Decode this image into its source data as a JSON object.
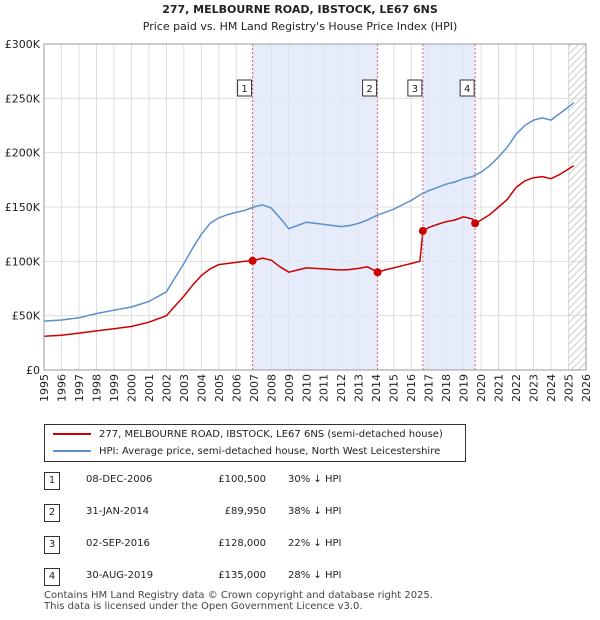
{
  "chart_data": {
    "type": "line",
    "title": "277, MELBOURNE ROAD, IBSTOCK, LE67 6NS",
    "subtitle": "Price paid vs. HM Land Registry's House Price Index (HPI)",
    "xlim": [
      1995,
      2026
    ],
    "ylim": [
      0,
      300000
    ],
    "yticks": [
      0,
      50000,
      100000,
      150000,
      200000,
      250000,
      300000
    ],
    "ytick_labels": [
      "£0",
      "£50K",
      "£100K",
      "£150K",
      "£200K",
      "£250K",
      "£300K"
    ],
    "xticks": [
      1995,
      1996,
      1997,
      1998,
      1999,
      2000,
      2001,
      2002,
      2003,
      2004,
      2005,
      2006,
      2007,
      2008,
      2009,
      2010,
      2011,
      2012,
      2013,
      2014,
      2015,
      2016,
      2017,
      2018,
      2019,
      2020,
      2021,
      2022,
      2023,
      2024,
      2025,
      2026
    ],
    "shaded_ranges": [
      [
        2006.93,
        2014.08
      ],
      [
        2016.67,
        2019.66
      ]
    ],
    "forecast_start": 2025.0,
    "series": [
      {
        "name": "HPI: Average price, semi-detached house, North West Leicestershire",
        "color": "#5b8fd0",
        "x": [
          1995,
          1996,
          1997,
          1998,
          1999,
          2000,
          2001,
          2002,
          2002.5,
          2003,
          2003.5,
          2004,
          2004.5,
          2005,
          2005.5,
          2006,
          2006.5,
          2007,
          2007.5,
          2008,
          2008.5,
          2009,
          2009.5,
          2010,
          2010.5,
          2011,
          2011.5,
          2012,
          2012.5,
          2013,
          2013.5,
          2014,
          2014.5,
          2015,
          2015.5,
          2016,
          2016.5,
          2017,
          2017.5,
          2018,
          2018.5,
          2019,
          2019.5,
          2020,
          2020.5,
          2021,
          2021.5,
          2022,
          2022.5,
          2023,
          2023.5,
          2024,
          2024.5,
          2025,
          2025.3
        ],
        "values": [
          45000,
          46000,
          48000,
          52000,
          55000,
          58000,
          63000,
          72000,
          85000,
          98000,
          112000,
          125000,
          135000,
          140000,
          143000,
          145000,
          147000,
          150000,
          152000,
          149000,
          140000,
          130000,
          133000,
          136000,
          135000,
          134000,
          133000,
          132000,
          133000,
          135000,
          138000,
          142000,
          145000,
          148000,
          152000,
          156000,
          161000,
          165000,
          168000,
          171000,
          173000,
          176000,
          178000,
          182000,
          188000,
          196000,
          205000,
          217000,
          225000,
          230000,
          232000,
          230000,
          236000,
          242000,
          246000
        ]
      },
      {
        "name": "277, MELBOURNE ROAD, IBSTOCK, LE67 6NS (semi-detached house)",
        "color": "#cc0000",
        "x": [
          1995,
          1996,
          1997,
          1998,
          1999,
          2000,
          2001,
          2002,
          2002.5,
          2003,
          2003.5,
          2004,
          2004.5,
          2005,
          2005.5,
          2006,
          2006.5,
          2006.93,
          2007.5,
          2008,
          2008.5,
          2009,
          2009.5,
          2010,
          2010.5,
          2011,
          2011.5,
          2012,
          2012.5,
          2013,
          2013.5,
          2014.08,
          2014.5,
          2015,
          2015.5,
          2016,
          2016.5,
          2016.67,
          2017,
          2017.5,
          2018,
          2018.5,
          2019,
          2019.5,
          2019.66,
          2020,
          2020.5,
          2021,
          2021.5,
          2022,
          2022.5,
          2023,
          2023.5,
          2024,
          2024.5,
          2025,
          2025.3
        ],
        "values": [
          31000,
          32000,
          34000,
          36000,
          38000,
          40000,
          44000,
          50000,
          59000,
          68000,
          78000,
          87000,
          93000,
          97000,
          98000,
          99000,
          100000,
          100500,
          103000,
          101000,
          95000,
          90000,
          92000,
          94000,
          93500,
          93000,
          92500,
          92000,
          92500,
          93500,
          95000,
          89950,
          92000,
          94000,
          96000,
          98000,
          100000,
          128000,
          131000,
          134000,
          136500,
          138000,
          141000,
          139000,
          135000,
          138000,
          143000,
          150000,
          157000,
          168000,
          174000,
          177000,
          178000,
          176000,
          180000,
          185000,
          188000
        ]
      }
    ],
    "markers": [
      {
        "label": "1",
        "x": 2006.93,
        "y": 100500
      },
      {
        "label": "2",
        "x": 2014.08,
        "y": 89950
      },
      {
        "label": "3",
        "x": 2016.67,
        "y": 128000
      },
      {
        "label": "4",
        "x": 2019.66,
        "y": 135000
      }
    ]
  },
  "legend": {
    "property_label": "277, MELBOURNE ROAD, IBSTOCK, LE67 6NS (semi-detached house)",
    "hpi_label": "HPI: Average price, semi-detached house, North West Leicestershire",
    "property_color": "#cc0000",
    "hpi_color": "#5b8fd0"
  },
  "sales": [
    {
      "num": "1",
      "date": "08-DEC-2006",
      "price": "£100,500",
      "hpi": "30% ↓ HPI"
    },
    {
      "num": "2",
      "date": "31-JAN-2014",
      "price": "£89,950",
      "hpi": "38% ↓ HPI"
    },
    {
      "num": "3",
      "date": "02-SEP-2016",
      "price": "£128,000",
      "hpi": "22% ↓ HPI"
    },
    {
      "num": "4",
      "date": "30-AUG-2019",
      "price": "£135,000",
      "hpi": "28% ↓ HPI"
    }
  ],
  "footer": {
    "line1": "Contains HM Land Registry data © Crown copyright and database right 2025.",
    "line2": "This data is licensed under the Open Government Licence v3.0."
  }
}
